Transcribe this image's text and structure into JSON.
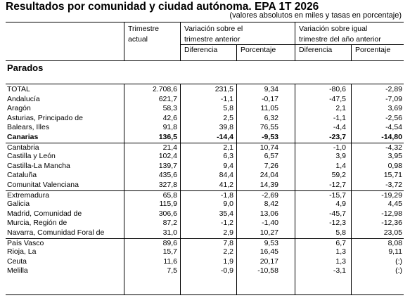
{
  "title": "Resultados por comunidad y ciudad autónoma. EPA 1T 2026",
  "subtitle": "(valores absolutos en miles y tasas en porcentaje)",
  "headers": {
    "col1_line1": "Trimestre",
    "col1_line2": "actual",
    "group1_line1": "Variación sobre el",
    "group1_line2": "trimestre anterior",
    "group2_line1": "Variación sobre igual",
    "group2_line2": "trimestre del año anterior",
    "diferencia": "Diferencia",
    "porcentaje": "Porcentaje"
  },
  "section": "Parados",
  "rows": [
    {
      "name": "TOTAL",
      "v": [
        "2.708,6",
        "231,5",
        "9,34",
        "-80,6",
        "-2,89"
      ]
    },
    {
      "name": "Andalucía",
      "v": [
        "621,7",
        "-1,1",
        "-0,17",
        "-47,5",
        "-7,09"
      ]
    },
    {
      "name": "Aragón",
      "v": [
        "58,3",
        "5,8",
        "11,05",
        "2,1",
        "3,69"
      ]
    },
    {
      "name": "Asturias, Principado de",
      "v": [
        "42,6",
        "2,5",
        "6,32",
        "-1,1",
        "-2,56"
      ]
    },
    {
      "name": "Balears, Illes",
      "v": [
        "91,8",
        "39,8",
        "76,55",
        "-4,4",
        "-4,54"
      ]
    },
    {
      "name": "Canarias",
      "v": [
        "136,5",
        "-14,4",
        "-9,53",
        "-23,7",
        "-14,80"
      ]
    },
    {
      "name": "Cantabria",
      "v": [
        "21,4",
        "2,1",
        "10,74",
        "-1,0",
        "-4,32"
      ]
    },
    {
      "name": "Castilla y León",
      "v": [
        "102,4",
        "6,3",
        "6,57",
        "3,9",
        "3,95"
      ]
    },
    {
      "name": "Castilla-La Mancha",
      "v": [
        "139,7",
        "9,4",
        "7,26",
        "1,4",
        "0,98"
      ]
    },
    {
      "name": "Cataluña",
      "v": [
        "435,6",
        "84,4",
        "24,04",
        "59,2",
        "15,71"
      ]
    },
    {
      "name": "Comunitat Valenciana",
      "v": [
        "327,8",
        "41,2",
        "14,39",
        "-12,7",
        "-3,72"
      ]
    },
    {
      "name": "Extremadura",
      "v": [
        "65,8",
        "-1,8",
        "-2,69",
        "-15,7",
        "-19,29"
      ]
    },
    {
      "name": "Galicia",
      "v": [
        "115,9",
        "9,0",
        "8,42",
        "4,9",
        "4,45"
      ]
    },
    {
      "name": "Madrid, Comunidad de",
      "v": [
        "306,6",
        "35,4",
        "13,06",
        "-45,7",
        "-12,98"
      ]
    },
    {
      "name": "Murcia, Región de",
      "v": [
        "87,2",
        "-1,2",
        "-1,40",
        "-12,3",
        "-12,36"
      ]
    },
    {
      "name": "Navarra, Comunidad Foral de",
      "v": [
        "31,0",
        "2,9",
        "10,27",
        "5,8",
        "23,05"
      ]
    },
    {
      "name": "País Vasco",
      "v": [
        "89,6",
        "7,8",
        "9,53",
        "6,7",
        "8,08"
      ]
    },
    {
      "name": "Rioja, La",
      "v": [
        "15,7",
        "2,2",
        "16,45",
        "1,3",
        "9,11"
      ]
    },
    {
      "name": "Ceuta",
      "v": [
        "11,6",
        "1,9",
        "20,17",
        "1,3",
        "(:)"
      ]
    },
    {
      "name": "Melilla",
      "v": [
        "7,5",
        "-0,9",
        "-10,58",
        "-3,1",
        "(:)"
      ]
    }
  ]
}
